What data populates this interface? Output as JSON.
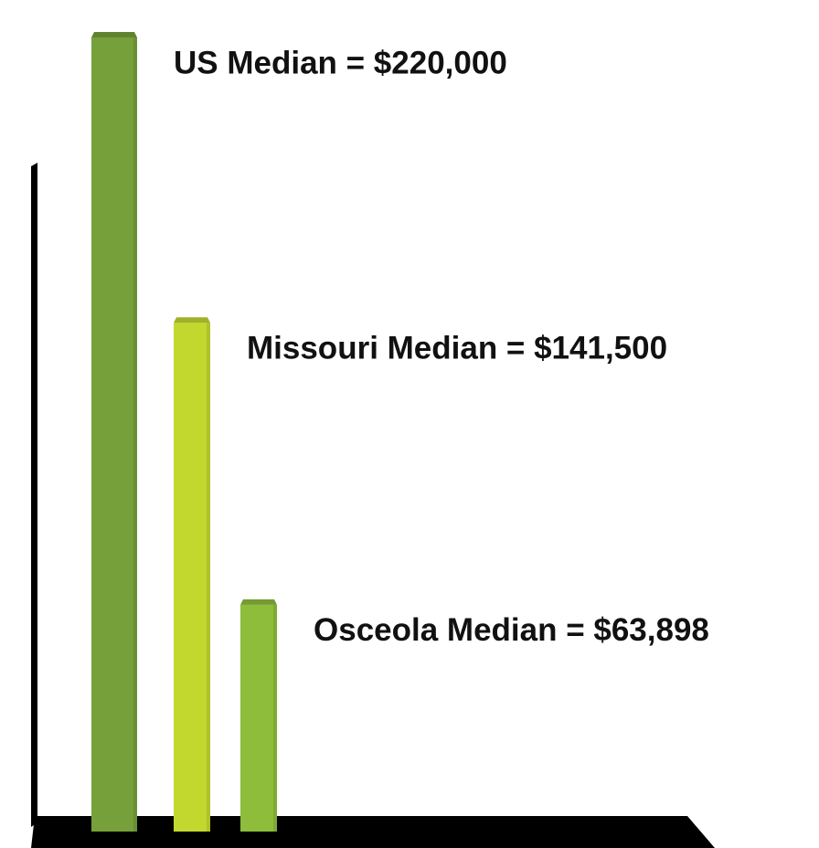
{
  "chart_data": {
    "type": "bar",
    "values": [
      220000,
      141500,
      63898
    ],
    "value_labels": [
      "US Median = $220,000",
      "Missouri Median = $141,500",
      "Osceola Median = $63,898"
    ],
    "colors": [
      "#76a03a",
      "#c3d82e",
      "#8dbd3a"
    ],
    "ylim": [
      0,
      220000
    ]
  }
}
